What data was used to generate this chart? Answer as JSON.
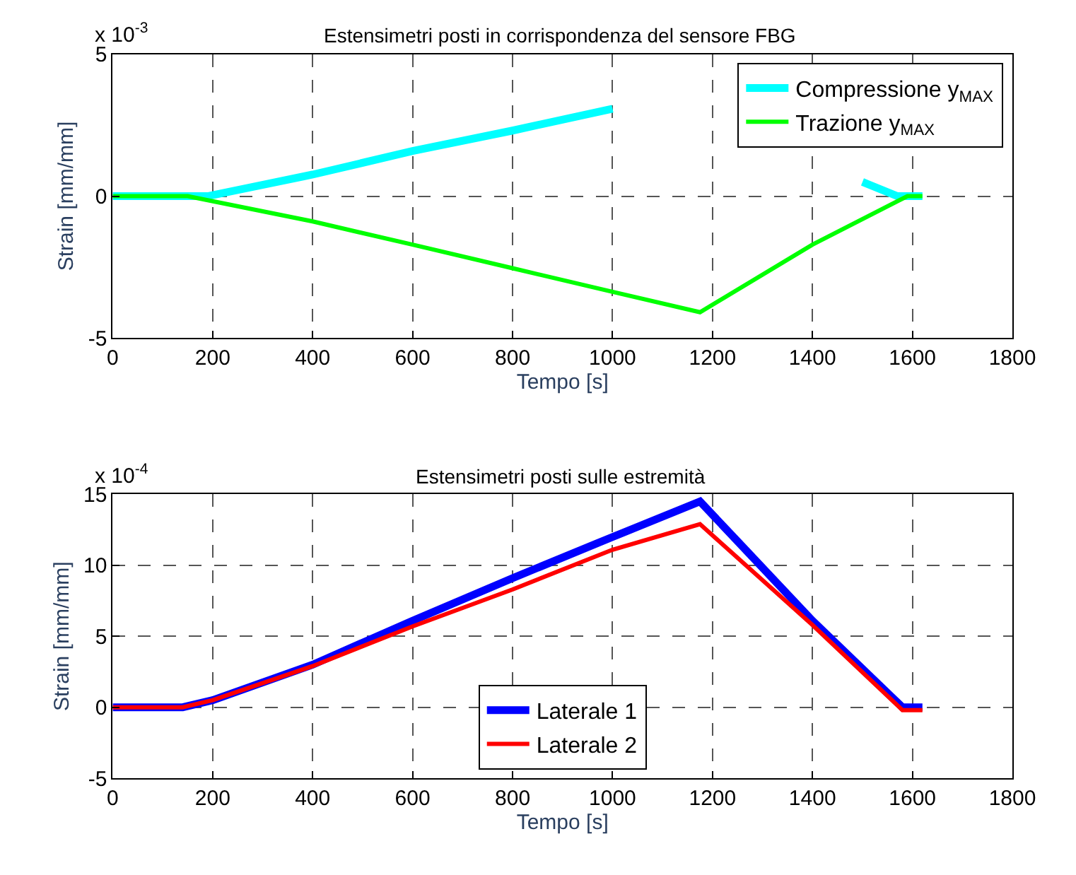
{
  "chart_data": [
    {
      "type": "line",
      "title": "Estensimetri posti in corrispondenza del sensore FBG",
      "xlabel": "Tempo [s]",
      "ylabel": "Strain [mm/mm]",
      "annotations": [
        "x 10$^{-3}$"
      ],
      "xlim": [
        0,
        1800
      ],
      "xticks": [
        0,
        200,
        400,
        600,
        800,
        1000,
        1200,
        1400,
        1600,
        1800
      ],
      "ylim": [
        -5,
        5
      ],
      "yticks": [
        -5,
        0,
        5
      ],
      "grid": true,
      "legend": "top right",
      "line_style": "solid",
      "marker": "none",
      "series": [
        {
          "name": "Compressione y$_{MAX}$",
          "color": "#00ffff",
          "x": [
            0,
            190,
            400,
            600,
            800,
            1000,
            1100,
            1500,
            1570,
            1620
          ],
          "values": [
            0,
            0,
            0.76,
            1.59,
            2.31,
            3.08,
            null,
            0.5,
            0,
            0
          ]
        },
        {
          "name": "Trazione y$_{MAX}$",
          "color": "#00ff00",
          "x": [
            0,
            150,
            400,
            600,
            800,
            1000,
            1175,
            1400,
            1590,
            1620
          ],
          "values": [
            0,
            0,
            -0.89,
            -1.71,
            -2.54,
            -3.37,
            -4.09,
            -1.71,
            0,
            0
          ]
        }
      ]
    },
    {
      "type": "line",
      "title": "Estensimetri posti sulle estremità",
      "xlabel": "Tempo [s]",
      "ylabel": "Strain [mm/mm]",
      "annotations": [
        "x 10$^{-4}$"
      ],
      "xlim": [
        0,
        1800
      ],
      "xticks": [
        0,
        200,
        400,
        600,
        800,
        1000,
        1200,
        1400,
        1600,
        1800
      ],
      "ylim": [
        -5,
        15
      ],
      "yticks": [
        -5,
        0,
        5,
        10,
        15
      ],
      "grid": true,
      "legend": "bottom",
      "line_style": "solid",
      "marker": "none",
      "series": [
        {
          "name": "Laterale 1",
          "color": "#0000ff",
          "x": [
            0,
            140,
            200,
            400,
            600,
            800,
            1000,
            1175,
            1400,
            1580,
            1620
          ],
          "values": [
            0,
            0,
            0.5,
            3.0,
            6.1,
            9.1,
            12.0,
            14.5,
            6.1,
            0,
            0
          ]
        },
        {
          "name": "Laterale 2",
          "color": "#ff0000",
          "x": [
            0,
            140,
            200,
            400,
            600,
            800,
            1000,
            1175,
            1400,
            1580,
            1620
          ],
          "values": [
            0,
            0,
            0.5,
            2.9,
            5.7,
            8.3,
            11.1,
            12.9,
            5.8,
            -0.2,
            -0.2
          ]
        }
      ]
    }
  ]
}
